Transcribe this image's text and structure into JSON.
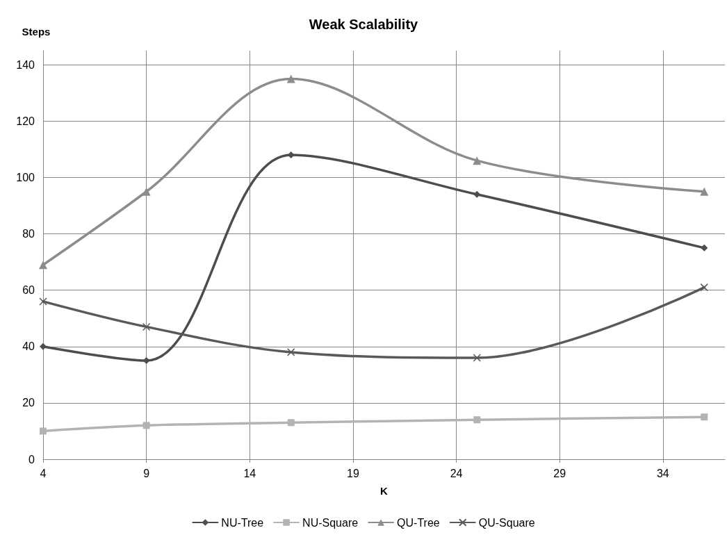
{
  "chart_data": {
    "type": "line",
    "title": "Weak Scalability",
    "xlabel": "K",
    "ylabel": "Steps",
    "x": [
      4,
      9,
      16,
      25,
      36
    ],
    "xlim": [
      4,
      37
    ],
    "xticks": [
      4,
      9,
      14,
      19,
      24,
      29,
      34
    ],
    "ylim": [
      0,
      145
    ],
    "yticks": [
      0,
      20,
      40,
      60,
      80,
      100,
      120,
      140
    ],
    "grid": true,
    "legend": "bottom",
    "line_style": "solid",
    "series": [
      {
        "name": "NU-Tree",
        "color": "#4d4d4d",
        "marker": "diamond",
        "values": [
          40,
          35,
          108,
          94,
          75
        ]
      },
      {
        "name": "NU-Square",
        "color": "#b3b3b3",
        "marker": "square",
        "values": [
          10,
          12,
          13,
          14,
          15
        ]
      },
      {
        "name": "QU-Tree",
        "color": "#8c8c8c",
        "marker": "triangle",
        "values": [
          69,
          95,
          135,
          106,
          95
        ]
      },
      {
        "name": "QU-Square",
        "color": "#595959",
        "marker": "cross",
        "values": [
          56,
          47,
          38,
          36,
          61
        ]
      }
    ]
  }
}
